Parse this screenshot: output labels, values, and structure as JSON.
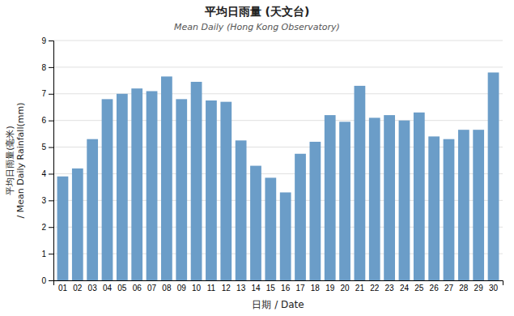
{
  "chart_data": {
    "type": "bar",
    "title": "平均日雨量 (天文台)",
    "subtitle": "Mean Daily (Hong Kong Observatory)",
    "x_label": "日期 / Date",
    "y_label": [
      "平均日雨量(毫米)",
      "/ Mean Daily Rainfall(mm)"
    ],
    "categories": [
      "01",
      "02",
      "03",
      "04",
      "05",
      "06",
      "07",
      "08",
      "09",
      "10",
      "11",
      "12",
      "13",
      "14",
      "15",
      "16",
      "17",
      "18",
      "19",
      "20",
      "21",
      "22",
      "23",
      "24",
      "25",
      "26",
      "27",
      "28",
      "29",
      "30"
    ],
    "values": [
      3.9,
      4.2,
      5.3,
      6.8,
      7.0,
      7.2,
      7.1,
      7.65,
      6.8,
      7.45,
      6.75,
      6.7,
      5.25,
      4.3,
      3.85,
      3.3,
      4.75,
      5.2,
      6.2,
      5.95,
      7.3,
      6.1,
      6.2,
      6.0,
      6.3,
      5.4,
      5.3,
      5.65,
      5.65,
      7.8
    ],
    "color": "#6b9dc8",
    "ylim": [
      0,
      9
    ],
    "yticks": [
      0,
      1,
      2,
      3,
      4,
      5,
      6,
      7,
      8,
      9
    ],
    "grid": true
  }
}
